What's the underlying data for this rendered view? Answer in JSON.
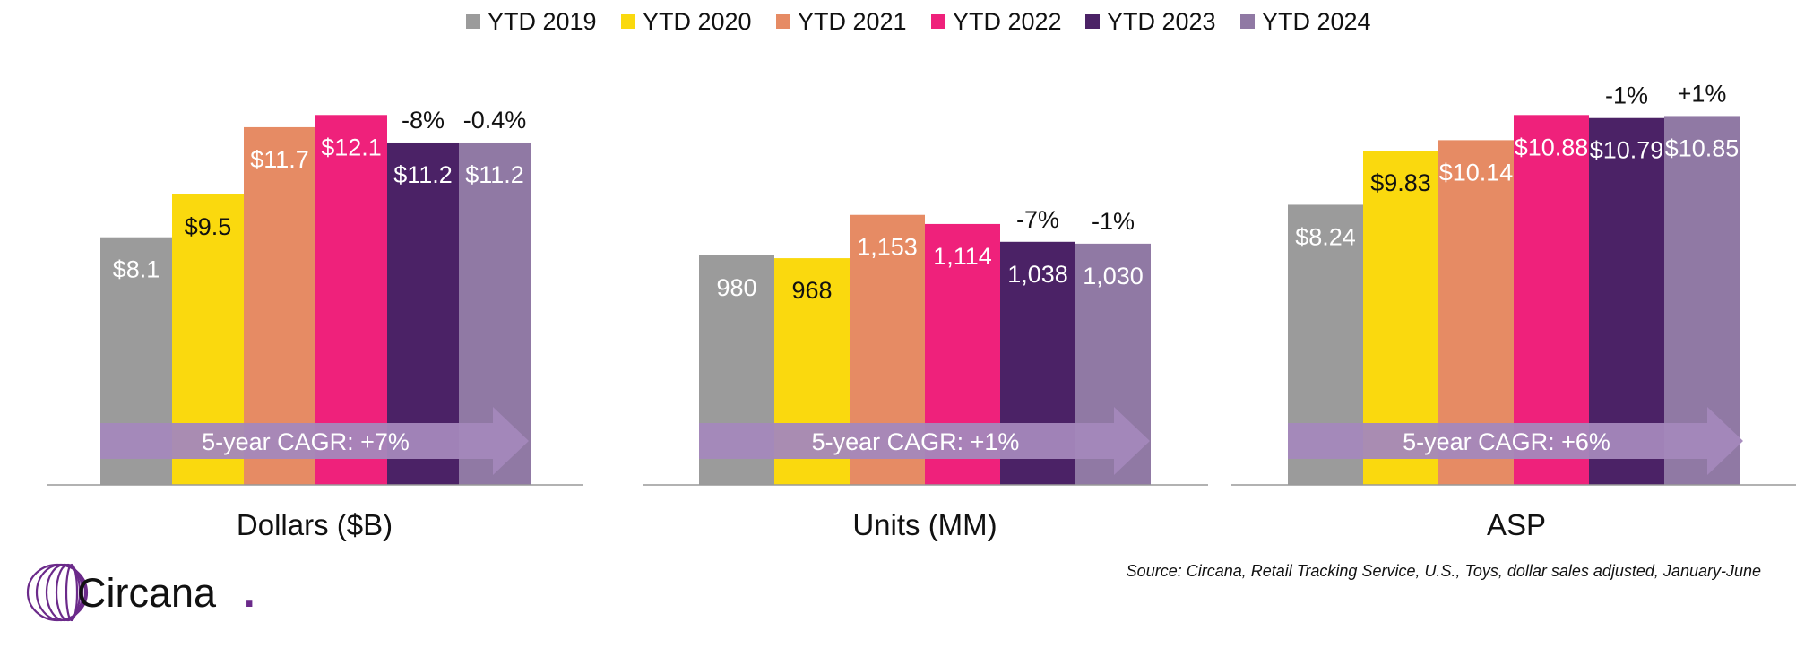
{
  "legend": [
    {
      "label": "YTD 2019",
      "color": "#9b9b9b"
    },
    {
      "label": "YTD 2020",
      "color": "#fad90e"
    },
    {
      "label": "YTD 2021",
      "color": "#e68b64"
    },
    {
      "label": "YTD 2022",
      "color": "#ef217b"
    },
    {
      "label": "YTD 2023",
      "color": "#4b2266"
    },
    {
      "label": "YTD 2024",
      "color": "#9079a4"
    }
  ],
  "chart_data": [
    {
      "type": "bar",
      "title": "Dollars ($B)",
      "categories": [
        "YTD 2019",
        "YTD 2020",
        "YTD 2021",
        "YTD 2022",
        "YTD 2023",
        "YTD 2024"
      ],
      "values": [
        8.1,
        9.5,
        11.7,
        12.1,
        11.2,
        11.2
      ],
      "data_labels": [
        "$8.1",
        "$9.5",
        "$11.7",
        "$12.1",
        "$11.2",
        "$11.2"
      ],
      "label_colors": [
        "#ffffff",
        "#111111",
        "#ffffff",
        "#ffffff",
        "#ffffff",
        "#ffffff"
      ],
      "change_labels": [
        "",
        "",
        "",
        "",
        "-8%",
        "-0.4%"
      ],
      "cagr_label": "5-year CAGR: +7%",
      "ylim": [
        0,
        12.9
      ]
    },
    {
      "type": "bar",
      "title": "Units (MM)",
      "categories": [
        "YTD 2019",
        "YTD 2020",
        "YTD 2021",
        "YTD 2022",
        "YTD 2023",
        "YTD 2024"
      ],
      "values": [
        980,
        968,
        1153,
        1114,
        1038,
        1030
      ],
      "data_labels": [
        "980",
        "968",
        "1,153",
        "1,114",
        "1,038",
        "1,030"
      ],
      "label_colors": [
        "#ffffff",
        "#111111",
        "#ffffff",
        "#ffffff",
        "#ffffff",
        "#ffffff"
      ],
      "change_labels": [
        "",
        "",
        "",
        "",
        "-7%",
        "-1%"
      ],
      "cagr_label": "5-year CAGR: +1%",
      "ylim": [
        0,
        1684
      ]
    },
    {
      "type": "bar",
      "title": "ASP",
      "categories": [
        "YTD 2019",
        "YTD 2020",
        "YTD 2021",
        "YTD 2022",
        "YTD 2023",
        "YTD 2024"
      ],
      "values": [
        8.24,
        9.83,
        10.14,
        10.88,
        10.79,
        10.85
      ],
      "data_labels": [
        "$8.24",
        "$9.83",
        "$10.14",
        "$10.88",
        "$10.79",
        "$10.85"
      ],
      "label_colors": [
        "#ffffff",
        "#111111",
        "#ffffff",
        "#ffffff",
        "#ffffff",
        "#ffffff"
      ],
      "change_labels": [
        "",
        "",
        "",
        "",
        "-1%",
        "+1%"
      ],
      "cagr_label": "5-year CAGR: +6%",
      "ylim": [
        0,
        11.6
      ]
    }
  ],
  "source": "Source: Circana, Retail Tracking Service, U.S., Toys, dollar sales adjusted, January-June",
  "logo": {
    "text": "Circana",
    "dot": ".",
    "color": "#111111",
    "accent": "#6b2a8a"
  }
}
